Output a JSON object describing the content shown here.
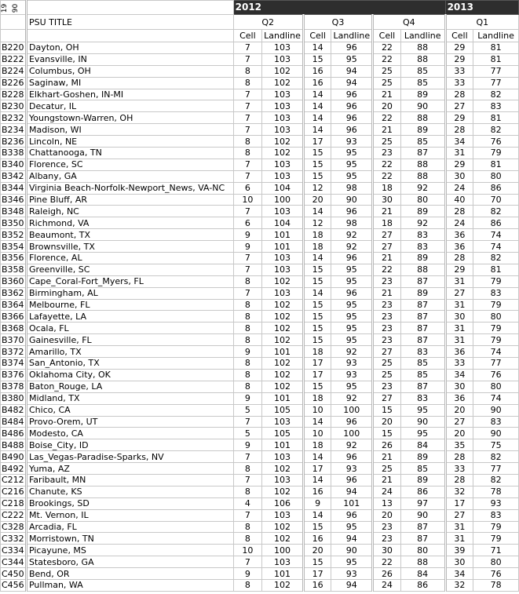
{
  "corner_label": [
    "19",
    "90"
  ],
  "years": [
    {
      "label": "2012"
    },
    {
      "label": "2013"
    }
  ],
  "psu_title_header": "PSU TITLE",
  "quarters": [
    "Q2",
    "Q3",
    "Q4",
    "Q1"
  ],
  "subheaders": {
    "cell": "Cell",
    "landline": "Landline"
  },
  "colors": {
    "year_bar": "#2e2e2e",
    "grid": "#c8c8c8"
  },
  "rows": [
    [
      "B220",
      "Dayton, OH",
      7,
      103,
      14,
      96,
      22,
      88,
      29,
      81
    ],
    [
      "B222",
      "Evansville, IN",
      7,
      103,
      15,
      95,
      22,
      88,
      29,
      81
    ],
    [
      "B224",
      "Columbus, OH",
      8,
      102,
      16,
      94,
      25,
      85,
      33,
      77
    ],
    [
      "B226",
      "Saginaw, MI",
      8,
      102,
      16,
      94,
      25,
      85,
      33,
      77
    ],
    [
      "B228",
      "Elkhart-Goshen, IN-MI",
      7,
      103,
      14,
      96,
      21,
      89,
      28,
      82
    ],
    [
      "B230",
      "Decatur, IL",
      7,
      103,
      14,
      96,
      20,
      90,
      27,
      83
    ],
    [
      "B232",
      "Youngstown-Warren, OH",
      7,
      103,
      14,
      96,
      22,
      88,
      29,
      81
    ],
    [
      "B234",
      "Madison, WI",
      7,
      103,
      14,
      96,
      21,
      89,
      28,
      82
    ],
    [
      "B236",
      "Lincoln, NE",
      8,
      102,
      17,
      93,
      25,
      85,
      34,
      76
    ],
    [
      "B338",
      "Chattanooga, TN",
      8,
      102,
      15,
      95,
      23,
      87,
      31,
      79
    ],
    [
      "B340",
      "Florence, SC",
      7,
      103,
      15,
      95,
      22,
      88,
      29,
      81
    ],
    [
      "B342",
      "Albany, GA",
      7,
      103,
      15,
      95,
      22,
      88,
      30,
      80
    ],
    [
      "B344",
      "Virginia Beach-Norfolk-Newport_News, VA-NC",
      6,
      104,
      12,
      98,
      18,
      92,
      24,
      86
    ],
    [
      "B346",
      "Pine Bluff, AR",
      10,
      100,
      20,
      90,
      30,
      80,
      40,
      70
    ],
    [
      "B348",
      "Raleigh, NC",
      7,
      103,
      14,
      96,
      21,
      89,
      28,
      82
    ],
    [
      "B350",
      "Richmond, VA",
      6,
      104,
      12,
      98,
      18,
      92,
      24,
      86
    ],
    [
      "B352",
      "Beaumont, TX",
      9,
      101,
      18,
      92,
      27,
      83,
      36,
      74
    ],
    [
      "B354",
      "Brownsville, TX",
      9,
      101,
      18,
      92,
      27,
      83,
      36,
      74
    ],
    [
      "B356",
      "Florence, AL",
      7,
      103,
      14,
      96,
      21,
      89,
      28,
      82
    ],
    [
      "B358",
      "Greenville, SC",
      7,
      103,
      15,
      95,
      22,
      88,
      29,
      81
    ],
    [
      "B360",
      "Cape_Coral-Fort_Myers, FL",
      8,
      102,
      15,
      95,
      23,
      87,
      31,
      79
    ],
    [
      "B362",
      "Birmingham, AL",
      7,
      103,
      14,
      96,
      21,
      89,
      27,
      83
    ],
    [
      "B364",
      "Melbourne, FL",
      8,
      102,
      15,
      95,
      23,
      87,
      31,
      79
    ],
    [
      "B366",
      "Lafayette, LA",
      8,
      102,
      15,
      95,
      23,
      87,
      30,
      80
    ],
    [
      "B368",
      "Ocala, FL",
      8,
      102,
      15,
      95,
      23,
      87,
      31,
      79
    ],
    [
      "B370",
      "Gainesville, FL",
      8,
      102,
      15,
      95,
      23,
      87,
      31,
      79
    ],
    [
      "B372",
      "Amarillo, TX",
      9,
      101,
      18,
      92,
      27,
      83,
      36,
      74
    ],
    [
      "B374",
      "San_Antonio, TX",
      8,
      102,
      17,
      93,
      25,
      85,
      33,
      77
    ],
    [
      "B376",
      "Oklahoma City, OK",
      8,
      102,
      17,
      93,
      25,
      85,
      34,
      76
    ],
    [
      "B378",
      "Baton_Rouge, LA",
      8,
      102,
      15,
      95,
      23,
      87,
      30,
      80
    ],
    [
      "B380",
      "Midland, TX",
      9,
      101,
      18,
      92,
      27,
      83,
      36,
      74
    ],
    [
      "B482",
      "Chico, CA",
      5,
      105,
      10,
      100,
      15,
      95,
      20,
      90
    ],
    [
      "B484",
      "Provo-Orem, UT",
      7,
      103,
      14,
      96,
      20,
      90,
      27,
      83
    ],
    [
      "B486",
      "Modesto, CA",
      5,
      105,
      10,
      100,
      15,
      95,
      20,
      90
    ],
    [
      "B488",
      "Boise_City, ID",
      9,
      101,
      18,
      92,
      26,
      84,
      35,
      75
    ],
    [
      "B490",
      "Las_Vegas-Paradise-Sparks, NV",
      7,
      103,
      14,
      96,
      21,
      89,
      28,
      82
    ],
    [
      "B492",
      "Yuma, AZ",
      8,
      102,
      17,
      93,
      25,
      85,
      33,
      77
    ],
    [
      "C212",
      "Faribault, MN",
      7,
      103,
      14,
      96,
      21,
      89,
      28,
      82
    ],
    [
      "C216",
      "Chanute, KS",
      8,
      102,
      16,
      94,
      24,
      86,
      32,
      78
    ],
    [
      "C218",
      "Brookings, SD",
      4,
      106,
      9,
      101,
      13,
      97,
      17,
      93
    ],
    [
      "C222",
      "Mt. Vernon, IL",
      7,
      103,
      14,
      96,
      20,
      90,
      27,
      83
    ],
    [
      "C328",
      "Arcadia, FL",
      8,
      102,
      15,
      95,
      23,
      87,
      31,
      79
    ],
    [
      "C332",
      "Morristown, TN",
      8,
      102,
      16,
      94,
      23,
      87,
      31,
      79
    ],
    [
      "C334",
      "Picayune, MS",
      10,
      100,
      20,
      90,
      30,
      80,
      39,
      71
    ],
    [
      "C344",
      "Statesboro, GA",
      7,
      103,
      15,
      95,
      22,
      88,
      30,
      80
    ],
    [
      "C450",
      "Bend, OR",
      9,
      101,
      17,
      93,
      26,
      84,
      34,
      76
    ],
    [
      "C456",
      "Pullman, WA",
      8,
      102,
      16,
      94,
      24,
      86,
      32,
      78
    ]
  ]
}
